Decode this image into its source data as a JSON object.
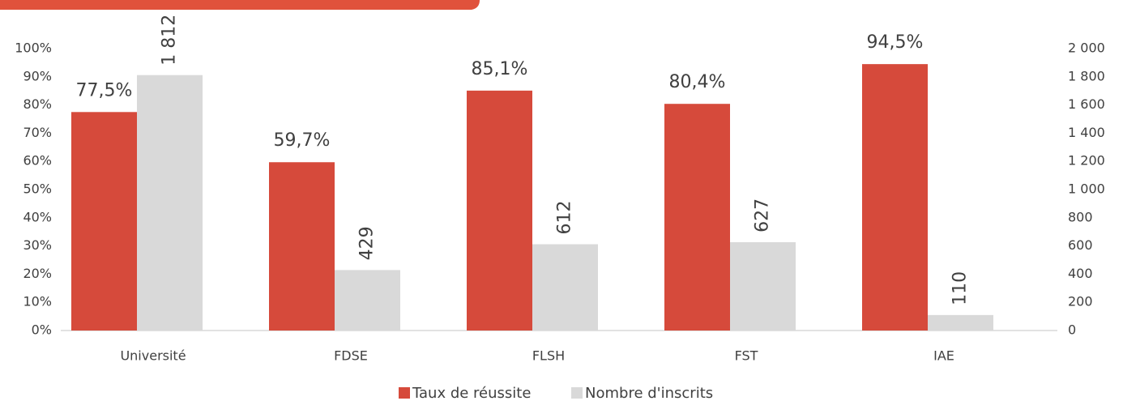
{
  "chart_data": {
    "type": "bar",
    "categories": [
      "Université",
      "FDSE",
      "FLSH",
      "FST",
      "IAE"
    ],
    "series": [
      {
        "name": "Taux de réussite",
        "color": "#d64a3b",
        "values": [
          77.5,
          59.7,
          85.1,
          80.4,
          94.5
        ],
        "value_labels": [
          "77,5%",
          "59,7%",
          "85,1%",
          "80,4%",
          "94,5%"
        ]
      },
      {
        "name": "Nombre d'inscrits",
        "color": "#d9d9d9",
        "axis": "y2",
        "values": [
          1812,
          429,
          612,
          627,
          110
        ],
        "value_labels": [
          "1 812",
          "429",
          "612",
          "627",
          "110"
        ]
      }
    ],
    "ylim": [
      0,
      100
    ],
    "yticks": [
      {
        "value": 0,
        "label": "0%"
      },
      {
        "value": 10,
        "label": "10%"
      },
      {
        "value": 20,
        "label": "20%"
      },
      {
        "value": 30,
        "label": "30%"
      },
      {
        "value": 40,
        "label": "40%"
      },
      {
        "value": 50,
        "label": "50%"
      },
      {
        "value": 60,
        "label": "60%"
      },
      {
        "value": 70,
        "label": "70%"
      },
      {
        "value": 80,
        "label": "80%"
      },
      {
        "value": 90,
        "label": "90%"
      },
      {
        "value": 100,
        "label": "100%"
      }
    ],
    "y2lim": [
      0,
      2000
    ],
    "y2ticks": [
      0,
      200,
      400,
      600,
      800,
      {
        "value": 1000,
        "label": "1 000"
      },
      {
        "value": 1200,
        "label": "1 200"
      },
      {
        "value": 1400,
        "label": "1 400"
      },
      {
        "value": 1600,
        "label": "1 600"
      },
      {
        "value": 1800,
        "label": "1 800"
      },
      {
        "value": 2000,
        "label": "2 000"
      }
    ],
    "grid": false,
    "legend": "bottom"
  }
}
